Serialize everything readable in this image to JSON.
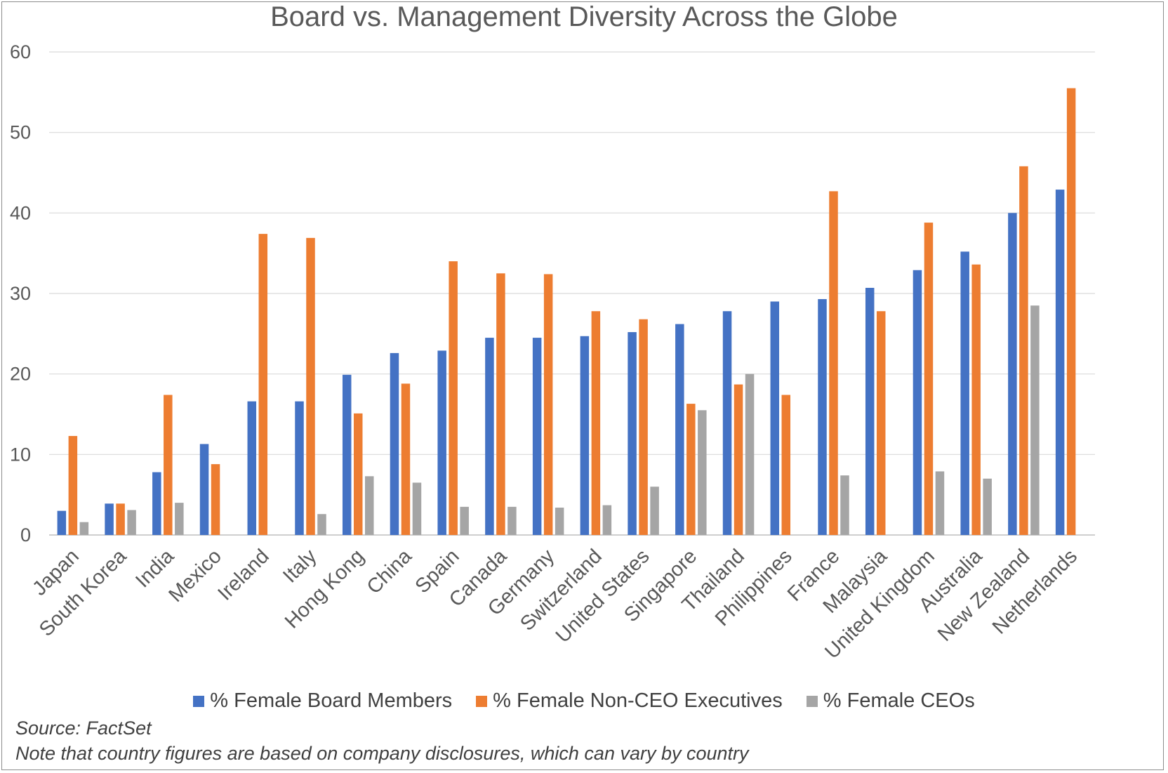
{
  "chart_data": {
    "type": "bar",
    "title": "Board vs. Management Diversity Across the Globe",
    "categories": [
      "Japan",
      "South Korea",
      "India",
      "Mexico",
      "Ireland",
      "Italy",
      "Hong Kong",
      "China",
      "Spain",
      "Canada",
      "Germany",
      "Switzerland",
      "United States",
      "Singapore",
      "Thailand",
      "Philippines",
      "France",
      "Malaysia",
      "United Kingdom",
      "Australia",
      "New Zealand",
      "Netherlands"
    ],
    "series": [
      {
        "name": "% Female Board Members",
        "color": "#4472C4",
        "values": [
          3.0,
          3.9,
          7.8,
          11.3,
          16.6,
          16.6,
          19.9,
          22.6,
          22.9,
          24.5,
          24.5,
          24.7,
          25.2,
          26.2,
          27.8,
          29.0,
          29.3,
          30.7,
          32.9,
          35.2,
          40.0,
          42.9
        ]
      },
      {
        "name": "% Female Non-CEO Executives",
        "color": "#ED7D31",
        "values": [
          12.3,
          3.9,
          17.4,
          8.8,
          37.4,
          36.9,
          15.1,
          18.8,
          34.0,
          32.5,
          32.4,
          27.8,
          26.8,
          16.3,
          18.7,
          17.4,
          42.7,
          27.8,
          38.8,
          33.6,
          45.8,
          55.5
        ]
      },
      {
        "name": "% Female CEOs",
        "color": "#A5A5A5",
        "values": [
          1.6,
          3.1,
          4.0,
          0,
          0,
          2.6,
          7.3,
          6.5,
          3.5,
          3.5,
          3.4,
          3.7,
          6.0,
          15.5,
          20.0,
          0,
          7.4,
          0,
          7.9,
          7.0,
          28.5,
          0
        ]
      }
    ],
    "ylim": [
      0,
      60
    ],
    "yticks": [
      0,
      10,
      20,
      30,
      40,
      50,
      60
    ],
    "grid": true,
    "legend_position": "bottom"
  },
  "notes": {
    "source": "Source: FactSet",
    "disclosure": "Note that country figures are based on company disclosures, which can vary by country"
  }
}
